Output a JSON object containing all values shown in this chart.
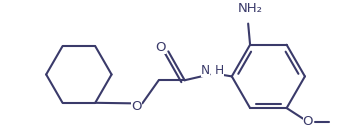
{
  "line_color": "#3a3a6a",
  "bg_color": "#ffffff",
  "line_width": 1.5,
  "font_size": 9.5,
  "figsize": [
    3.53,
    1.37
  ],
  "dpi": 100,
  "xlim": [
    0,
    353
  ],
  "ylim": [
    0,
    137
  ]
}
